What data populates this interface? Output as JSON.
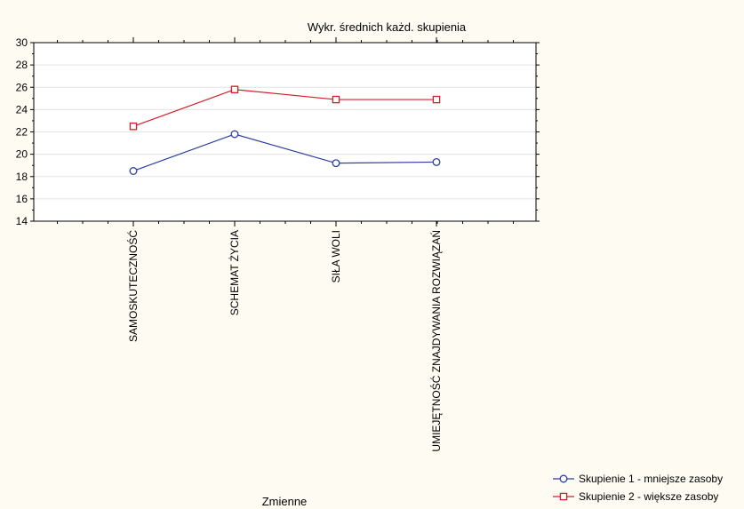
{
  "chart_data": {
    "type": "line",
    "title": "Wykr. średnich każd. skupienia",
    "xlabel": "Zmienne",
    "ylabel": "",
    "ylim": [
      14,
      30
    ],
    "yticks": [
      "14",
      "16",
      "18",
      "20",
      "22",
      "24",
      "26",
      "28",
      "30"
    ],
    "grid": true,
    "legend_position": "bottom-right",
    "categories": [
      "SAMOSKUTECZNOŚĆ",
      "SCHEMAT ŻYCIA",
      "SIŁA WOLI",
      "UMIEJĘTNOŚĆ ZNAJDYWANIA ROZWIĄZAŃ"
    ],
    "series": [
      {
        "name": "Skupienie 1 - mniejsze zasoby",
        "values": [
          18.5,
          21.8,
          19.2,
          19.3
        ],
        "color": "#2d3f9e",
        "marker": "circle"
      },
      {
        "name": "Skupienie 2 - większe zasoby",
        "values": [
          22.5,
          25.8,
          24.9,
          24.9
        ],
        "color": "#d0202a",
        "marker": "square"
      }
    ]
  }
}
